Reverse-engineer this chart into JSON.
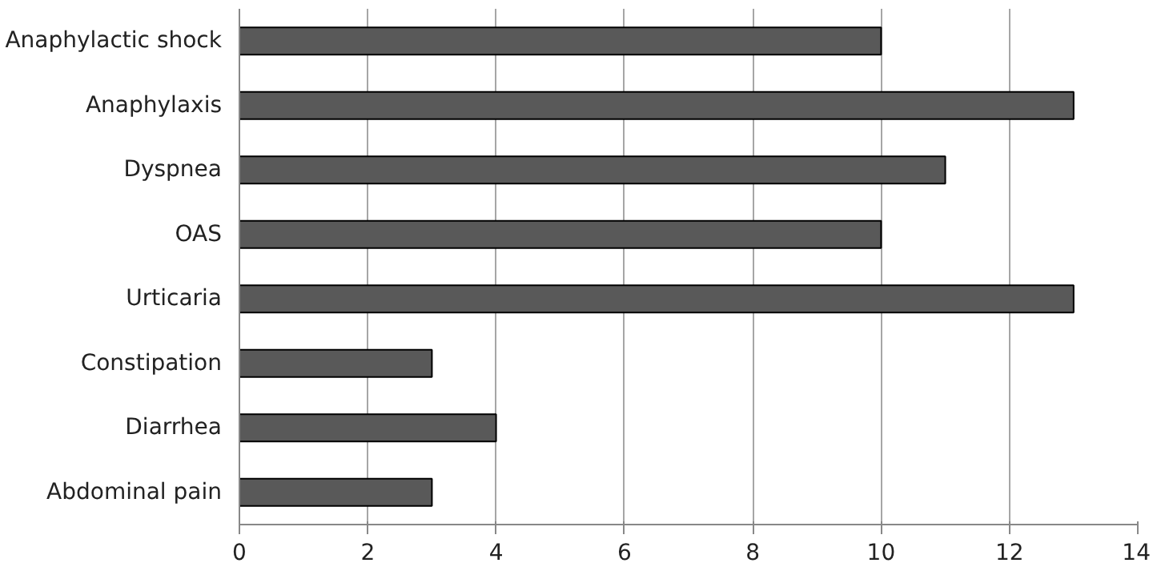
{
  "chart_data": {
    "type": "bar",
    "orientation": "horizontal",
    "categories": [
      "Anaphylactic shock",
      "Anaphylaxis",
      "Dyspnea",
      "OAS",
      "Urticaria",
      "Constipation",
      "Diarrhea",
      "Abdominal pain"
    ],
    "values": [
      10,
      13,
      11,
      10,
      13,
      3,
      4,
      3
    ],
    "color": "#595959",
    "xlim": [
      0,
      14
    ],
    "xticks": [
      0,
      2,
      4,
      6,
      8,
      10,
      12,
      14
    ],
    "grid": "x"
  }
}
